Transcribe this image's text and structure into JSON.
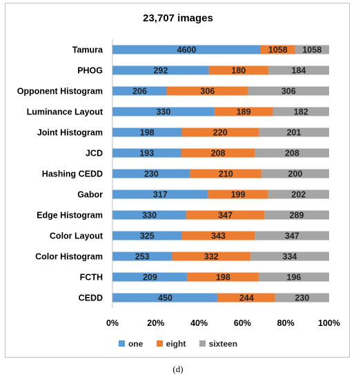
{
  "title": "23,707 images",
  "caption": "(d)",
  "chart_data": {
    "type": "bar",
    "orientation": "horizontal",
    "stacked": "100%",
    "title": "23,707 images",
    "categories": [
      "Tamura",
      "PHOG",
      "Opponent Histogram",
      "Luminance Layout",
      "Joint Histogram",
      "JCD",
      "Hashing CEDD",
      "Gabor",
      "Edge Histogram",
      "Color Layout",
      "Color Histogram",
      "FCTH",
      "CEDD"
    ],
    "series": [
      {
        "name": "one",
        "color": "#5b9bd5",
        "values": [
          4600,
          292,
          206,
          330,
          198,
          193,
          230,
          317,
          330,
          325,
          253,
          209,
          450
        ]
      },
      {
        "name": "eight",
        "color": "#ed7d31",
        "values": [
          1058,
          180,
          306,
          189,
          220,
          208,
          210,
          199,
          347,
          343,
          332,
          198,
          244
        ]
      },
      {
        "name": "sixteen",
        "color": "#a5a5a5",
        "values": [
          1058,
          184,
          306,
          182,
          201,
          208,
          200,
          202,
          289,
          347,
          334,
          196,
          230
        ]
      }
    ],
    "xlim": [
      0,
      100
    ],
    "xticks": [
      "0%",
      "20%",
      "40%",
      "60%",
      "80%",
      "100%"
    ],
    "grid": false,
    "legend": "bottom"
  }
}
